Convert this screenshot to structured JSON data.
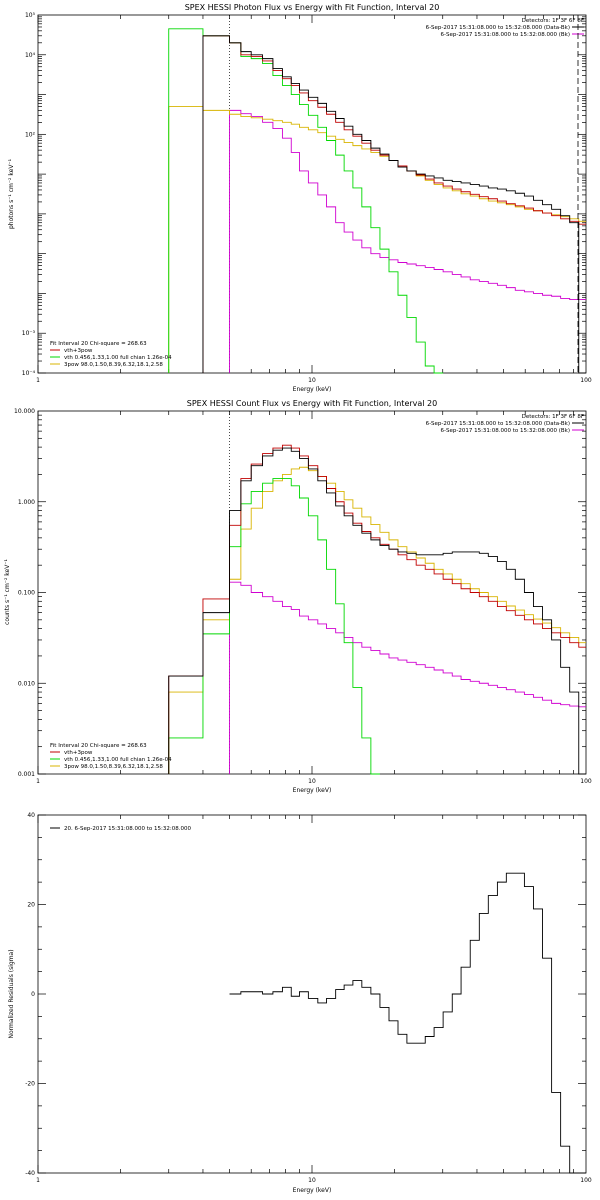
{
  "colors": {
    "data": "#000000",
    "background": "#d000d0",
    "vth": "#00d800",
    "three_pow": "#d8b400",
    "vth_3pow": "#c00000",
    "vline": "#a000a0"
  },
  "chart_data": [
    {
      "type": "line",
      "title": "SPEX HESSI Photon Flux vs Energy with Fit Function, Interval 20",
      "xlabel": "Energy (keV)",
      "ylabel": "photons s⁻¹ cm⁻² keV⁻¹",
      "x_scale": "log",
      "y_scale": "log",
      "xlim": [
        1,
        100
      ],
      "ylim": [
        0.0001,
        100000
      ],
      "x_ticks": [
        {
          "v": 1,
          "label": "1"
        },
        {
          "v": 10,
          "label": "10"
        },
        {
          "v": 100,
          "label": "100"
        }
      ],
      "y_ticks": [
        {
          "v": 0.0001,
          "label": "10⁻⁴"
        },
        {
          "v": 0.001,
          "label": "10⁻³"
        },
        {
          "v": 100,
          "label": "10²"
        },
        {
          "v": 10000,
          "label": "10⁴"
        },
        {
          "v": 100000,
          "label": "10⁵"
        }
      ],
      "dotted_vline": 5,
      "header_lines": [
        "Detectors: 1F 3F 6F 8F",
        "6-Sep-2017 15:31:08.000 to 15:32:08.000 (Data-Bk)",
        "6-Sep-2017 15:31:08.000 to 15:32:08.000 (Bk)"
      ],
      "legend": [
        "Fit Interval 20   Chi-square = 268.63",
        "vth+3pow",
        "vth 0.456,1.33,1.00  full chian 1.26e-04",
        "3pow 98.0,1.50,8.39,6.32,18.1,2.58"
      ],
      "edges": [
        3,
        4,
        5,
        5.5,
        6,
        6.6,
        7.2,
        7.8,
        8.4,
        9,
        9.7,
        10.5,
        11.3,
        12.2,
        13.1,
        14.1,
        15.2,
        16.4,
        17.7,
        19.1,
        20.6,
        22.2,
        24,
        25.9,
        27.9,
        30.1,
        32.5,
        35,
        37.8,
        40.8,
        44,
        47.5,
        51.2,
        55.2,
        59.6,
        64.3,
        69.4,
        74.9,
        80.8,
        87.2,
        94.1,
        100
      ],
      "series": [
        {
          "key": "data",
          "values": [
            null,
            30000,
            20000,
            12000,
            10000,
            8000,
            4500,
            2800,
            1900,
            1300,
            850,
            600,
            380,
            250,
            160,
            100,
            70,
            45,
            32,
            22,
            15,
            12,
            10,
            9,
            8,
            7,
            6.5,
            6,
            5.5,
            5,
            4.5,
            4.2,
            3.8,
            3.3,
            2.8,
            2.2,
            1.7,
            1.3,
            0.9,
            0.6,
            0.0001
          ]
        },
        {
          "key": "vth_3pow",
          "values": [
            null,
            30000,
            20000,
            10000,
            9000,
            7000,
            4000,
            2500,
            1700,
            1100,
            700,
            480,
            320,
            200,
            130,
            90,
            60,
            40,
            30,
            22,
            16,
            12,
            9.5,
            7.5,
            6,
            5,
            4.2,
            3.6,
            3.1,
            2.7,
            2.4,
            2.1,
            1.8,
            1.6,
            1.4,
            1.2,
            1.05,
            0.9,
            0.75,
            0.65,
            0.55
          ]
        },
        {
          "key": "vth",
          "values": [
            45000,
            30000,
            20000,
            9000,
            8000,
            6000,
            3000,
            1700,
            1000,
            560,
            300,
            150,
            70,
            30,
            12,
            4.5,
            1.5,
            0.45,
            0.13,
            0.035,
            0.009,
            0.0025,
            0.0006,
            0.00015,
            0.0001,
            null,
            null,
            null,
            null,
            null,
            null,
            null,
            null,
            null,
            null,
            null,
            null,
            null,
            null,
            null,
            null
          ]
        },
        {
          "key": "three_pow",
          "values": [
            500,
            400,
            320,
            280,
            260,
            240,
            220,
            200,
            180,
            150,
            130,
            110,
            90,
            75,
            62,
            52,
            43,
            35,
            28,
            22,
            16,
            12,
            9,
            7,
            5.5,
            4.5,
            3.8,
            3.2,
            2.8,
            2.4,
            2.1,
            1.9,
            1.7,
            1.5,
            1.3,
            1.2,
            1.05,
            0.95,
            0.85,
            0.75,
            0.65
          ]
        },
        {
          "key": "background",
          "values": [
            null,
            null,
            400,
            330,
            280,
            200,
            140,
            80,
            35,
            12,
            6,
            3,
            1.5,
            0.6,
            0.35,
            0.22,
            0.14,
            0.1,
            0.08,
            0.07,
            0.06,
            0.055,
            0.05,
            0.045,
            0.04,
            0.035,
            0.03,
            0.026,
            0.022,
            0.02,
            0.018,
            0.016,
            0.014,
            0.012,
            0.011,
            0.01,
            0.009,
            0.0085,
            0.0075,
            0.007,
            0.007
          ]
        }
      ]
    },
    {
      "type": "line",
      "title": "SPEX HESSI Count Flux vs Energy with Fit Function, Interval 20",
      "xlabel": "Energy (keV)",
      "ylabel": "counts s⁻¹ cm⁻² keV⁻¹",
      "x_scale": "log",
      "y_scale": "log",
      "xlim": [
        1,
        100
      ],
      "ylim": [
        0.001,
        10
      ],
      "x_ticks": [
        {
          "v": 1,
          "label": "1"
        },
        {
          "v": 10,
          "label": "10"
        },
        {
          "v": 100,
          "label": "100"
        }
      ],
      "y_ticks": [
        {
          "v": 0.001,
          "label": "0.001"
        },
        {
          "v": 0.01,
          "label": "0.010"
        },
        {
          "v": 0.1,
          "label": "0.100"
        },
        {
          "v": 1,
          "label": "1.000"
        },
        {
          "v": 10,
          "label": "10.000"
        }
      ],
      "dotted_vline": 5,
      "header_lines": [
        "Detectors: 1F 3F 6F 8F",
        "6-Sep-2017 15:31:08.000 to 15:32:08.000 (Data-Bk)",
        "6-Sep-2017 15:31:08.000 to 15:32:08.000 (Bk)"
      ],
      "legend": [
        "Fit Interval 20   Chi-square = 268.63",
        "vth+3pow",
        "vth 0.456,1.33,1.00  full chian 1.26e-04",
        "3pow 98.0,1.50,8.39,6.32,18.1,2.58"
      ],
      "edges": [
        3,
        4,
        5,
        5.5,
        6,
        6.6,
        7.2,
        7.8,
        8.4,
        9,
        9.7,
        10.5,
        11.3,
        12.2,
        13.1,
        14.1,
        15.2,
        16.4,
        17.7,
        19.1,
        20.6,
        22.2,
        24,
        25.9,
        27.9,
        30.1,
        32.5,
        35,
        37.8,
        40.8,
        44,
        47.5,
        51.2,
        55.2,
        59.6,
        64.3,
        69.4,
        74.9,
        80.8,
        87.2,
        94.1,
        100
      ],
      "series": [
        {
          "key": "data",
          "values": [
            0.012,
            0.06,
            0.8,
            1.7,
            2.5,
            3.2,
            3.7,
            3.9,
            3.6,
            3.0,
            2.3,
            1.7,
            1.25,
            0.9,
            0.7,
            0.55,
            0.45,
            0.38,
            0.33,
            0.3,
            0.28,
            0.27,
            0.26,
            0.26,
            0.26,
            0.27,
            0.28,
            0.28,
            0.28,
            0.27,
            0.25,
            0.22,
            0.18,
            0.14,
            0.1,
            0.07,
            0.05,
            0.03,
            0.015,
            0.008,
            0.001
          ]
        },
        {
          "key": "vth_3pow",
          "values": [
            0.012,
            0.085,
            0.55,
            1.8,
            2.6,
            3.4,
            3.9,
            4.2,
            3.9,
            3.2,
            2.5,
            1.9,
            1.4,
            1.0,
            0.75,
            0.58,
            0.47,
            0.4,
            0.34,
            0.3,
            0.26,
            0.23,
            0.2,
            0.18,
            0.16,
            0.14,
            0.125,
            0.11,
            0.1,
            0.09,
            0.08,
            0.07,
            0.063,
            0.056,
            0.05,
            0.045,
            0.04,
            0.036,
            0.032,
            0.028,
            0.025
          ]
        },
        {
          "key": "vth",
          "values": [
            0.0025,
            0.035,
            0.32,
            0.95,
            1.3,
            1.6,
            1.8,
            1.8,
            1.5,
            1.1,
            0.7,
            0.38,
            0.18,
            0.075,
            0.028,
            0.009,
            0.0025,
            0.001,
            null,
            null,
            null,
            null,
            null,
            null,
            null,
            null,
            null,
            null,
            null,
            null,
            null,
            null,
            null,
            null,
            null,
            null,
            null,
            null,
            null,
            null,
            null
          ]
        },
        {
          "key": "three_pow",
          "values": [
            0.008,
            0.05,
            0.14,
            0.5,
            0.85,
            1.3,
            1.7,
            2.0,
            2.3,
            2.4,
            2.2,
            1.9,
            1.6,
            1.3,
            1.05,
            0.85,
            0.68,
            0.56,
            0.46,
            0.38,
            0.32,
            0.28,
            0.24,
            0.21,
            0.18,
            0.16,
            0.14,
            0.125,
            0.11,
            0.1,
            0.09,
            0.08,
            0.071,
            0.064,
            0.057,
            0.051,
            0.046,
            0.041,
            0.036,
            0.032,
            0.028
          ]
        },
        {
          "key": "background",
          "values": [
            null,
            null,
            0.13,
            0.12,
            0.1,
            0.09,
            0.08,
            0.07,
            0.065,
            0.055,
            0.05,
            0.045,
            0.04,
            0.036,
            0.032,
            0.028,
            0.025,
            0.023,
            0.021,
            0.019,
            0.018,
            0.017,
            0.016,
            0.015,
            0.014,
            0.013,
            0.012,
            0.011,
            0.0105,
            0.01,
            0.0095,
            0.009,
            0.0085,
            0.008,
            0.0075,
            0.007,
            0.0065,
            0.006,
            0.0058,
            0.0056,
            0.0055
          ]
        }
      ]
    },
    {
      "type": "line",
      "title": "",
      "xlabel": "Energy (keV)",
      "ylabel": "Normalized Residuals (sigma)",
      "x_scale": "log",
      "y_scale": "linear",
      "xlim": [
        1,
        100
      ],
      "ylim": [
        -40,
        40
      ],
      "x_ticks": [
        {
          "v": 1,
          "label": "1"
        },
        {
          "v": 10,
          "label": "10"
        },
        {
          "v": 100,
          "label": "100"
        }
      ],
      "y_ticks": [
        {
          "v": -40,
          "label": "-40"
        },
        {
          "v": -20,
          "label": "-20"
        },
        {
          "v": 0,
          "label": "0"
        },
        {
          "v": 20,
          "label": "20"
        },
        {
          "v": 40,
          "label": "40"
        }
      ],
      "legend": [
        "20.  6-Sep-2017 15:31:08.000 to 15:32:08.000"
      ],
      "edges": [
        5,
        5.5,
        6,
        6.6,
        7.2,
        7.8,
        8.4,
        9,
        9.7,
        10.5,
        11.3,
        12.2,
        13.1,
        14.1,
        15.2,
        16.4,
        17.7,
        19.1,
        20.6,
        22.2,
        24,
        25.9,
        27.9,
        30.1,
        32.5,
        35,
        37.8,
        40.8,
        44,
        47.5,
        51.2,
        55.2,
        59.6,
        64.3,
        69.4,
        74.9,
        80.8,
        87.2,
        94.1,
        100
      ],
      "series": [
        {
          "key": "data",
          "values": [
            0,
            0.5,
            0.5,
            0,
            0.5,
            1.5,
            -0.5,
            0.5,
            -1,
            -2,
            -1,
            1,
            2,
            3,
            1.5,
            0,
            -3,
            -6,
            -9,
            -11,
            -11,
            -9.5,
            -7.5,
            -4,
            0,
            6,
            12,
            18,
            22,
            25,
            27,
            27,
            24,
            19,
            8,
            -22,
            -34,
            -40,
            -40
          ]
        }
      ]
    }
  ]
}
